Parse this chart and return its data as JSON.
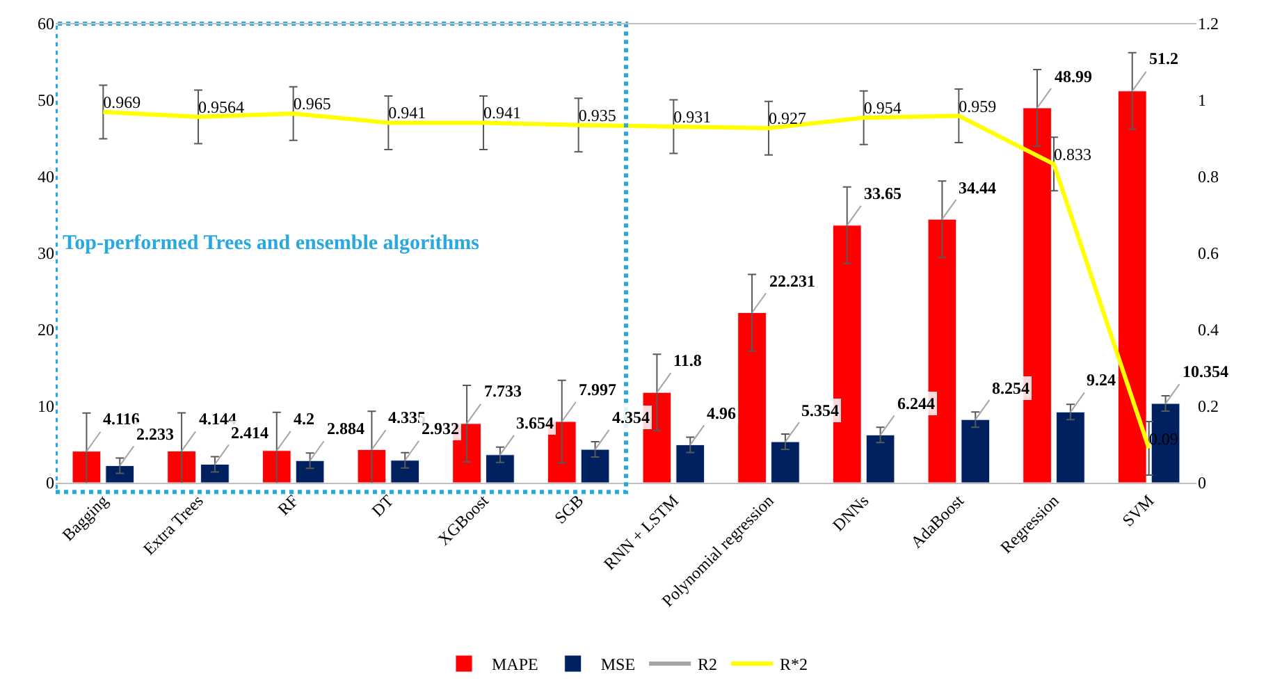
{
  "chart_data": {
    "type": "bar",
    "categories": [
      "Bagging",
      "Extra Trees",
      "RF",
      "DT",
      "XGBoost",
      "SGB",
      "RNN + LSTM",
      "Polynomial regression",
      "DNNs",
      "AdaBoost",
      "Regression",
      "SVM"
    ],
    "series": [
      {
        "name": "MAPE",
        "color": "#ff0000",
        "values": [
          4.116,
          4.144,
          4.2,
          4.335,
          7.733,
          7.997,
          11.8,
          22.231,
          33.65,
          34.44,
          48.99,
          51.2
        ],
        "errors": [
          5,
          5,
          5,
          5,
          5,
          5.4,
          5,
          5,
          5,
          5,
          5,
          5
        ]
      },
      {
        "name": "MSE",
        "color": "#002060",
        "values": [
          2.233,
          2.414,
          2.884,
          2.932,
          3.654,
          4.354,
          4.96,
          5.354,
          6.244,
          8.254,
          9.24,
          10.354
        ],
        "errors": [
          1,
          1,
          1,
          1,
          1,
          1,
          1,
          1,
          1,
          1,
          1,
          1
        ]
      },
      {
        "name": "R2",
        "type": "line",
        "axis": "y2",
        "color": "#a5a5a5",
        "values": [
          null,
          null,
          null,
          null,
          null,
          null,
          null,
          null,
          null,
          null,
          null,
          null
        ]
      },
      {
        "name": "R*2",
        "type": "line",
        "axis": "y2",
        "color": "#ffff00",
        "values": [
          0.969,
          0.9564,
          0.965,
          0.941,
          0.941,
          0.935,
          0.931,
          0.927,
          0.954,
          0.959,
          0.833,
          0.09
        ],
        "errors": [
          0.07,
          0.07,
          0.07,
          0.07,
          0.07,
          0.07,
          0.07,
          0.07,
          0.07,
          0.07,
          0.07,
          0.07
        ]
      }
    ],
    "ylim": [
      0,
      60
    ],
    "yticks": [
      0,
      10,
      20,
      30,
      40,
      50,
      60
    ],
    "y2lim": [
      0,
      1.2
    ],
    "y2ticks": [
      0,
      0.2,
      0.4,
      0.6,
      0.8,
      1,
      1.2
    ],
    "data_labels": true,
    "legend": "bottom",
    "marker": "none",
    "annotations": [
      "Top-performed Trees and ensemble algorithms"
    ]
  }
}
